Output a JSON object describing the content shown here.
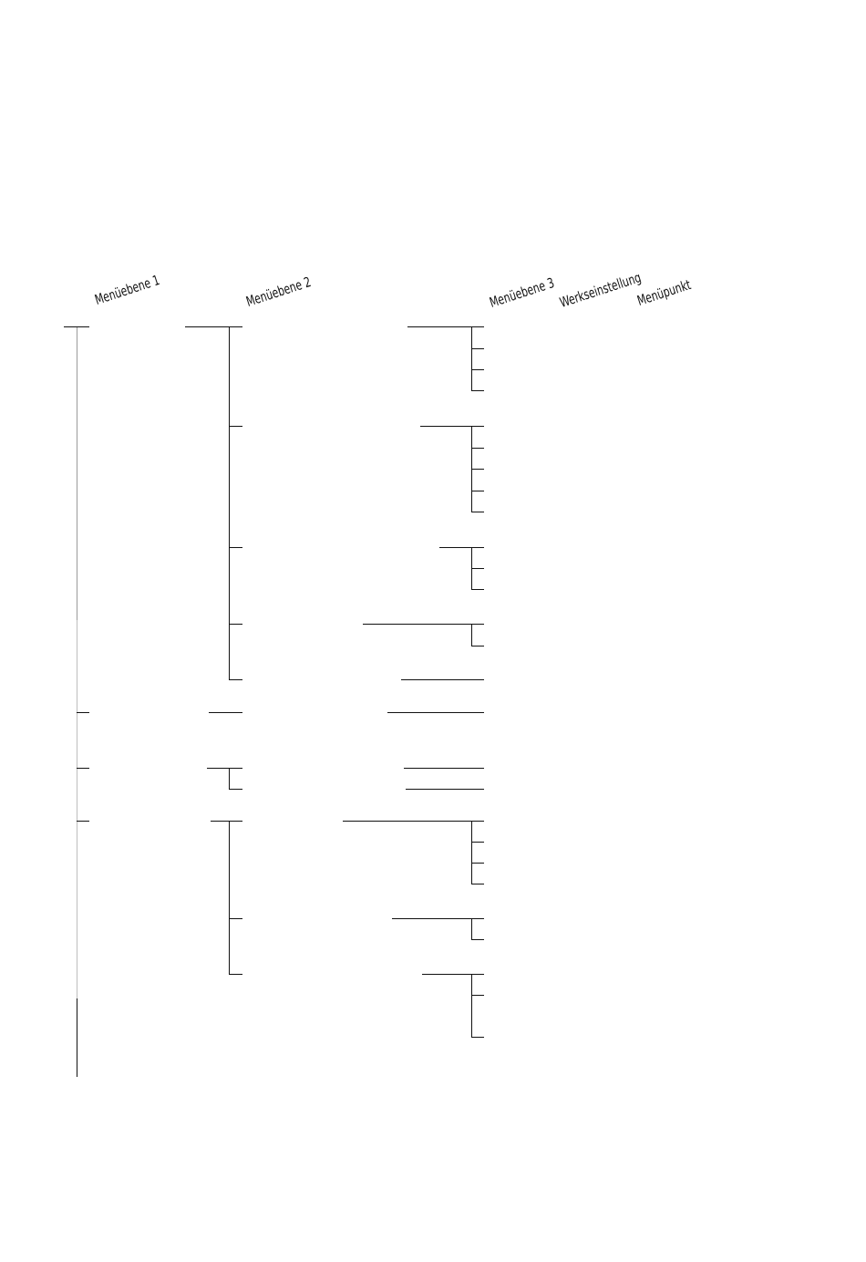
{
  "headers": {
    "menu_level_1": "Menüebene 1",
    "menu_level_2": "Menüebene 2",
    "menu_level_3": "Menüebene 3",
    "factory_setting": "Werkseinstellung",
    "menu_item": "Menüpunkt"
  },
  "colors": {
    "line": "#111111",
    "trunk_light": "#9a9a9a"
  }
}
